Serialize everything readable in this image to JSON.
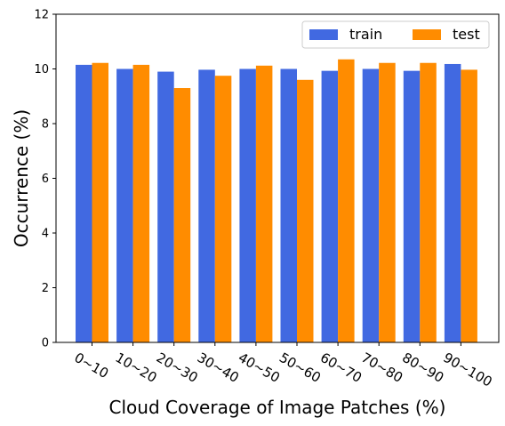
{
  "chart_data": {
    "type": "bar",
    "title": "",
    "xlabel": "Cloud Coverage of Image Patches (%)",
    "ylabel": "Occurrence (%)",
    "categories": [
      "0~10",
      "10~20",
      "20~30",
      "30~40",
      "40~50",
      "50~60",
      "60~70",
      "70~80",
      "80~90",
      "90~100"
    ],
    "series": [
      {
        "name": "train",
        "color": "#4169e1",
        "values": [
          10.15,
          10.0,
          9.9,
          9.97,
          10.0,
          10.0,
          9.93,
          10.0,
          9.93,
          10.18
        ]
      },
      {
        "name": "test",
        "color": "#ff8c00",
        "values": [
          10.22,
          10.15,
          9.3,
          9.75,
          10.12,
          9.6,
          10.35,
          10.22,
          10.22,
          9.97
        ]
      }
    ],
    "ylim": [
      0,
      12
    ],
    "yticks": [
      0,
      2,
      4,
      6,
      8,
      10,
      12
    ],
    "grid": false,
    "legend": {
      "placement": "top-right",
      "columns": 2
    }
  }
}
